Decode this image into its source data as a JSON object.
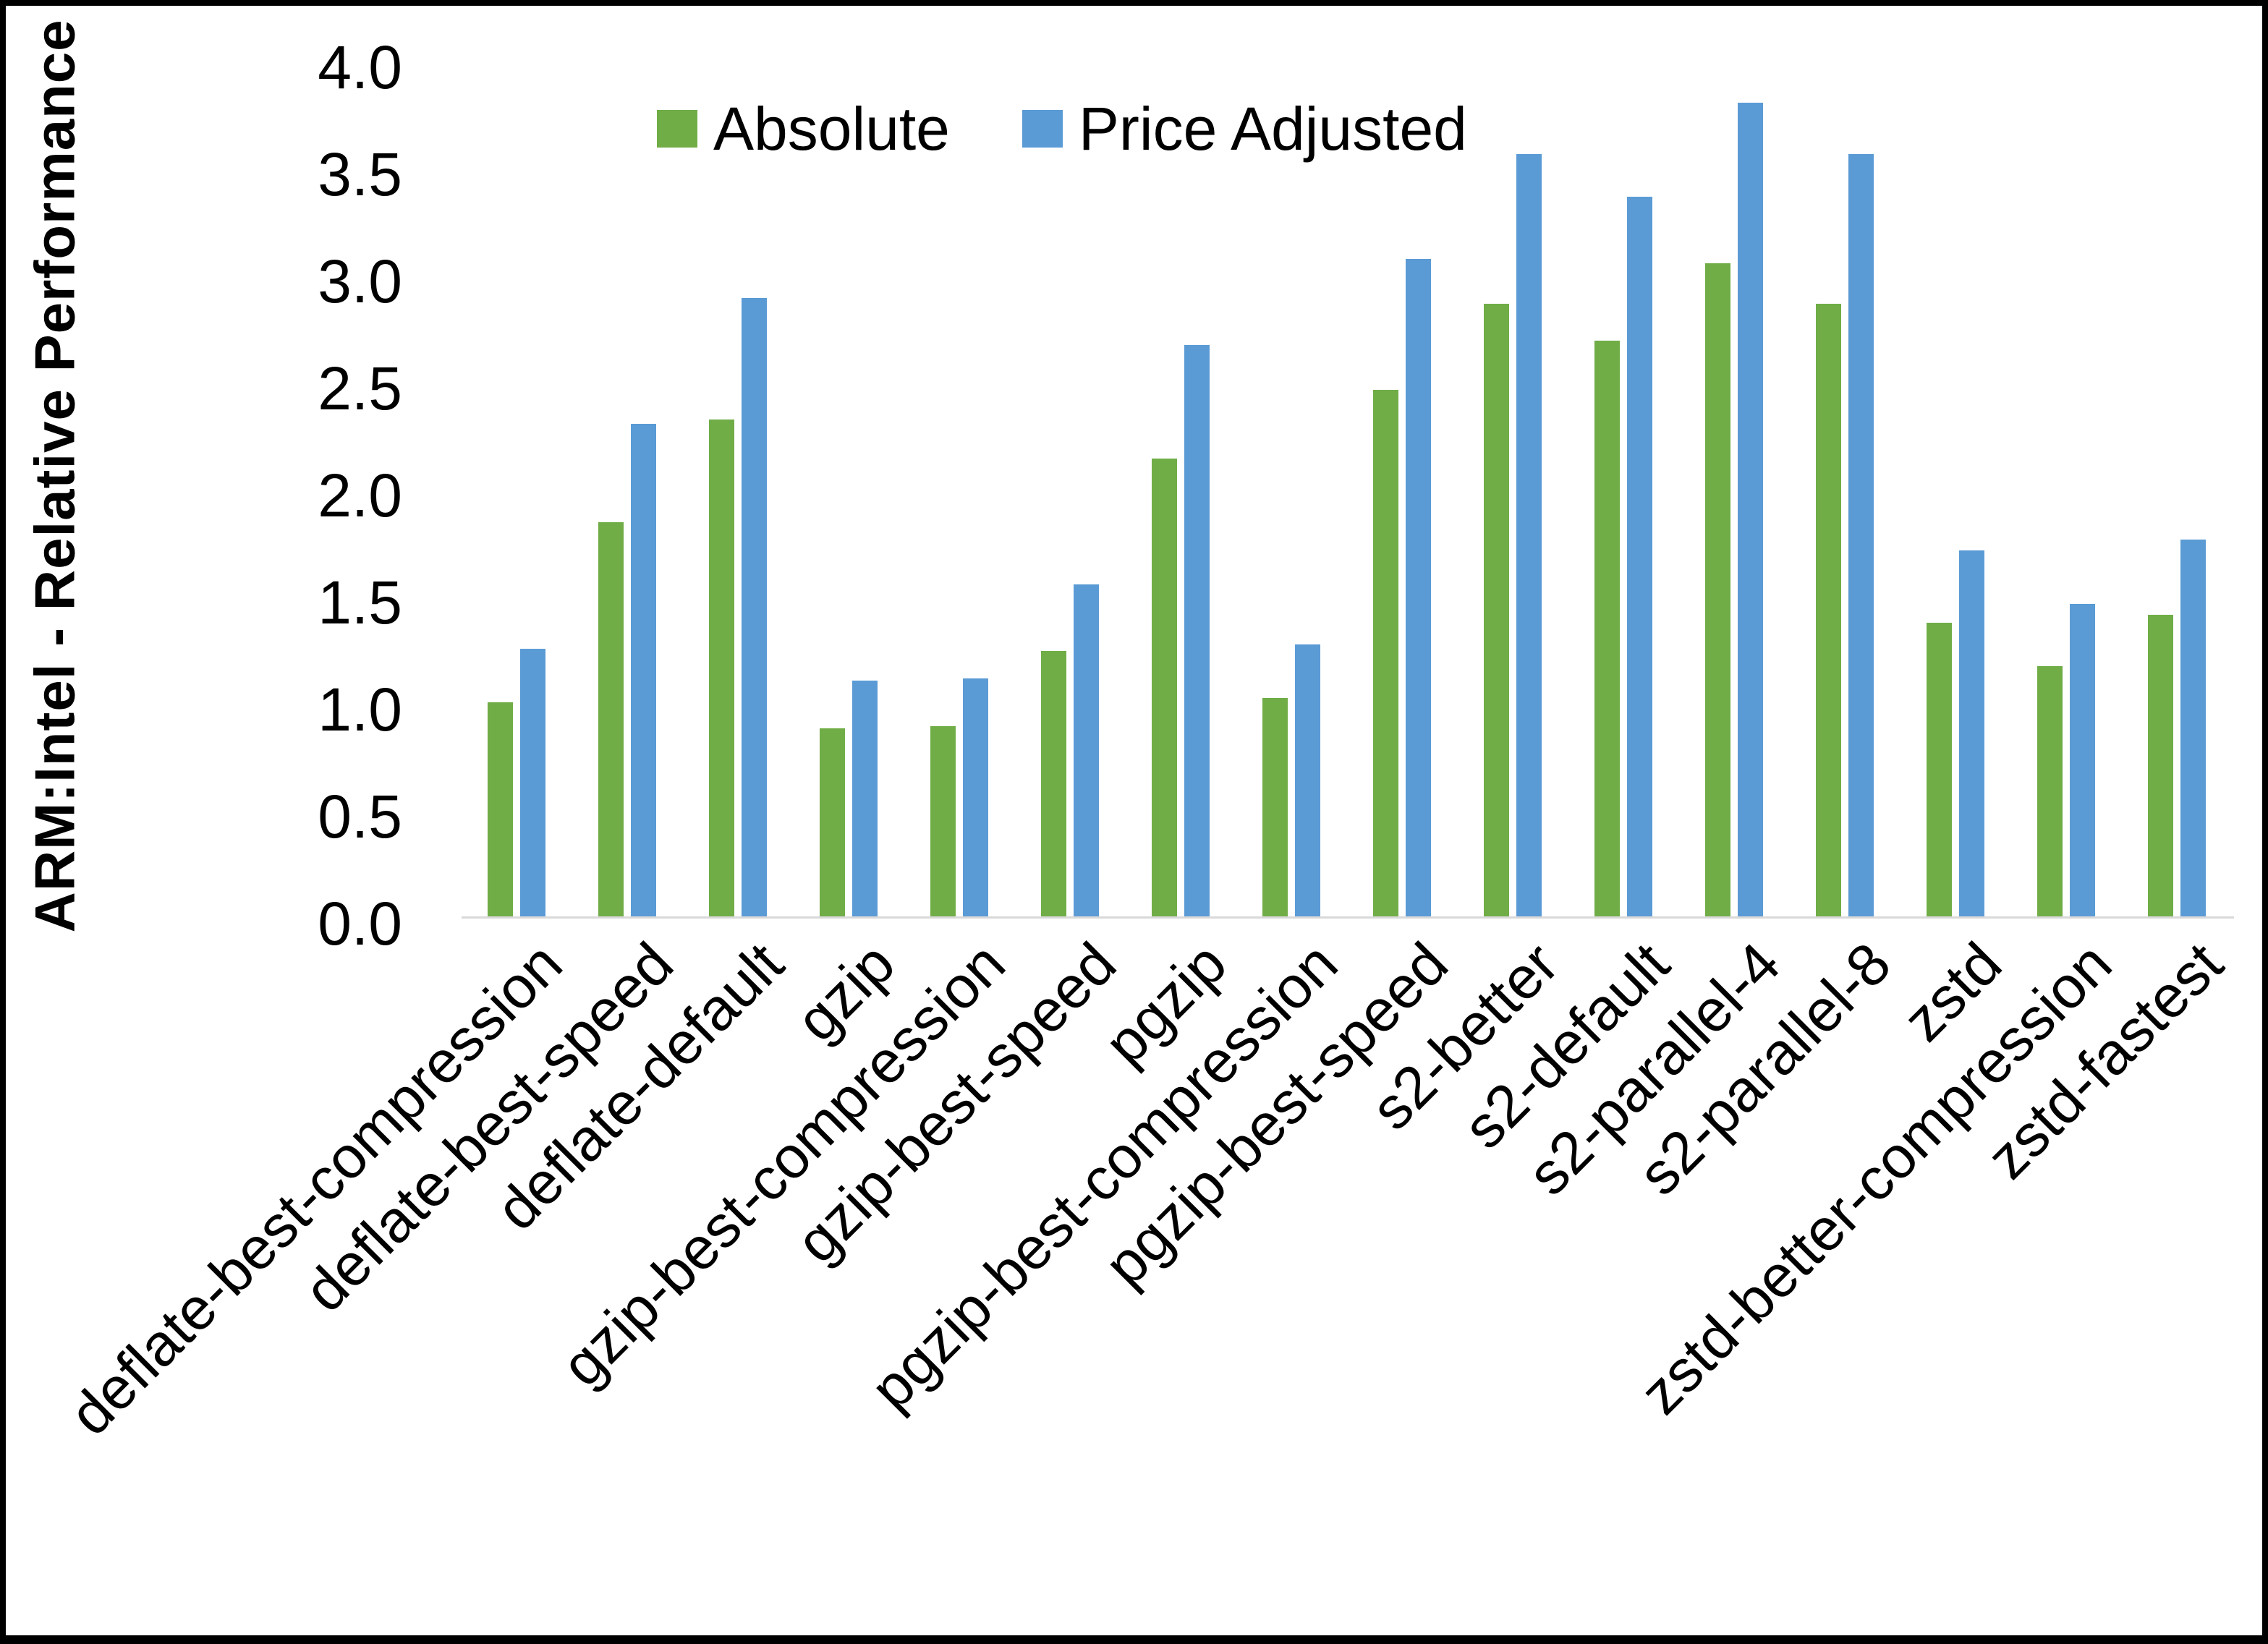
{
  "chart_data": {
    "type": "bar",
    "title": "",
    "ylabel": "ARM:Intel - Relative Performance",
    "xlabel": "",
    "ylim": [
      0.0,
      4.0
    ],
    "ytick_step": 0.5,
    "ytick_labels": [
      "0.0",
      "0.5",
      "1.0",
      "1.5",
      "2.0",
      "2.5",
      "3.0",
      "3.5",
      "4.0"
    ],
    "grid": "off",
    "legend_position": "top-center",
    "axis_line_color": "#D9D9D9",
    "background_color": "#FFFFFF",
    "frame_border_color": "#000000",
    "categories": [
      "deflate-best-compression",
      "deflate-best-speed",
      "deflate-default",
      "gzip",
      "gzip-best-compression",
      "gzip-best-speed",
      "pgzip",
      "pgzip-best-compression",
      "pgzip-best-speed",
      "s2-better",
      "s2-default",
      "s2-parallel-4",
      "s2-parallel-8",
      "zstd",
      "zstd-better-compression",
      "zstd-fastest"
    ],
    "series": [
      {
        "name": "Absolute",
        "color": "#70AD47",
        "values": [
          1.0,
          1.84,
          2.32,
          0.88,
          0.89,
          1.24,
          2.14,
          1.02,
          2.46,
          2.86,
          2.69,
          3.05,
          2.86,
          1.37,
          1.17,
          1.41
        ]
      },
      {
        "name": "Price Adjusted",
        "color": "#5B9BD5",
        "values": [
          1.25,
          2.3,
          2.89,
          1.1,
          1.11,
          1.55,
          2.67,
          1.27,
          3.07,
          3.56,
          3.36,
          3.8,
          3.56,
          1.71,
          1.46,
          1.76
        ]
      }
    ]
  }
}
